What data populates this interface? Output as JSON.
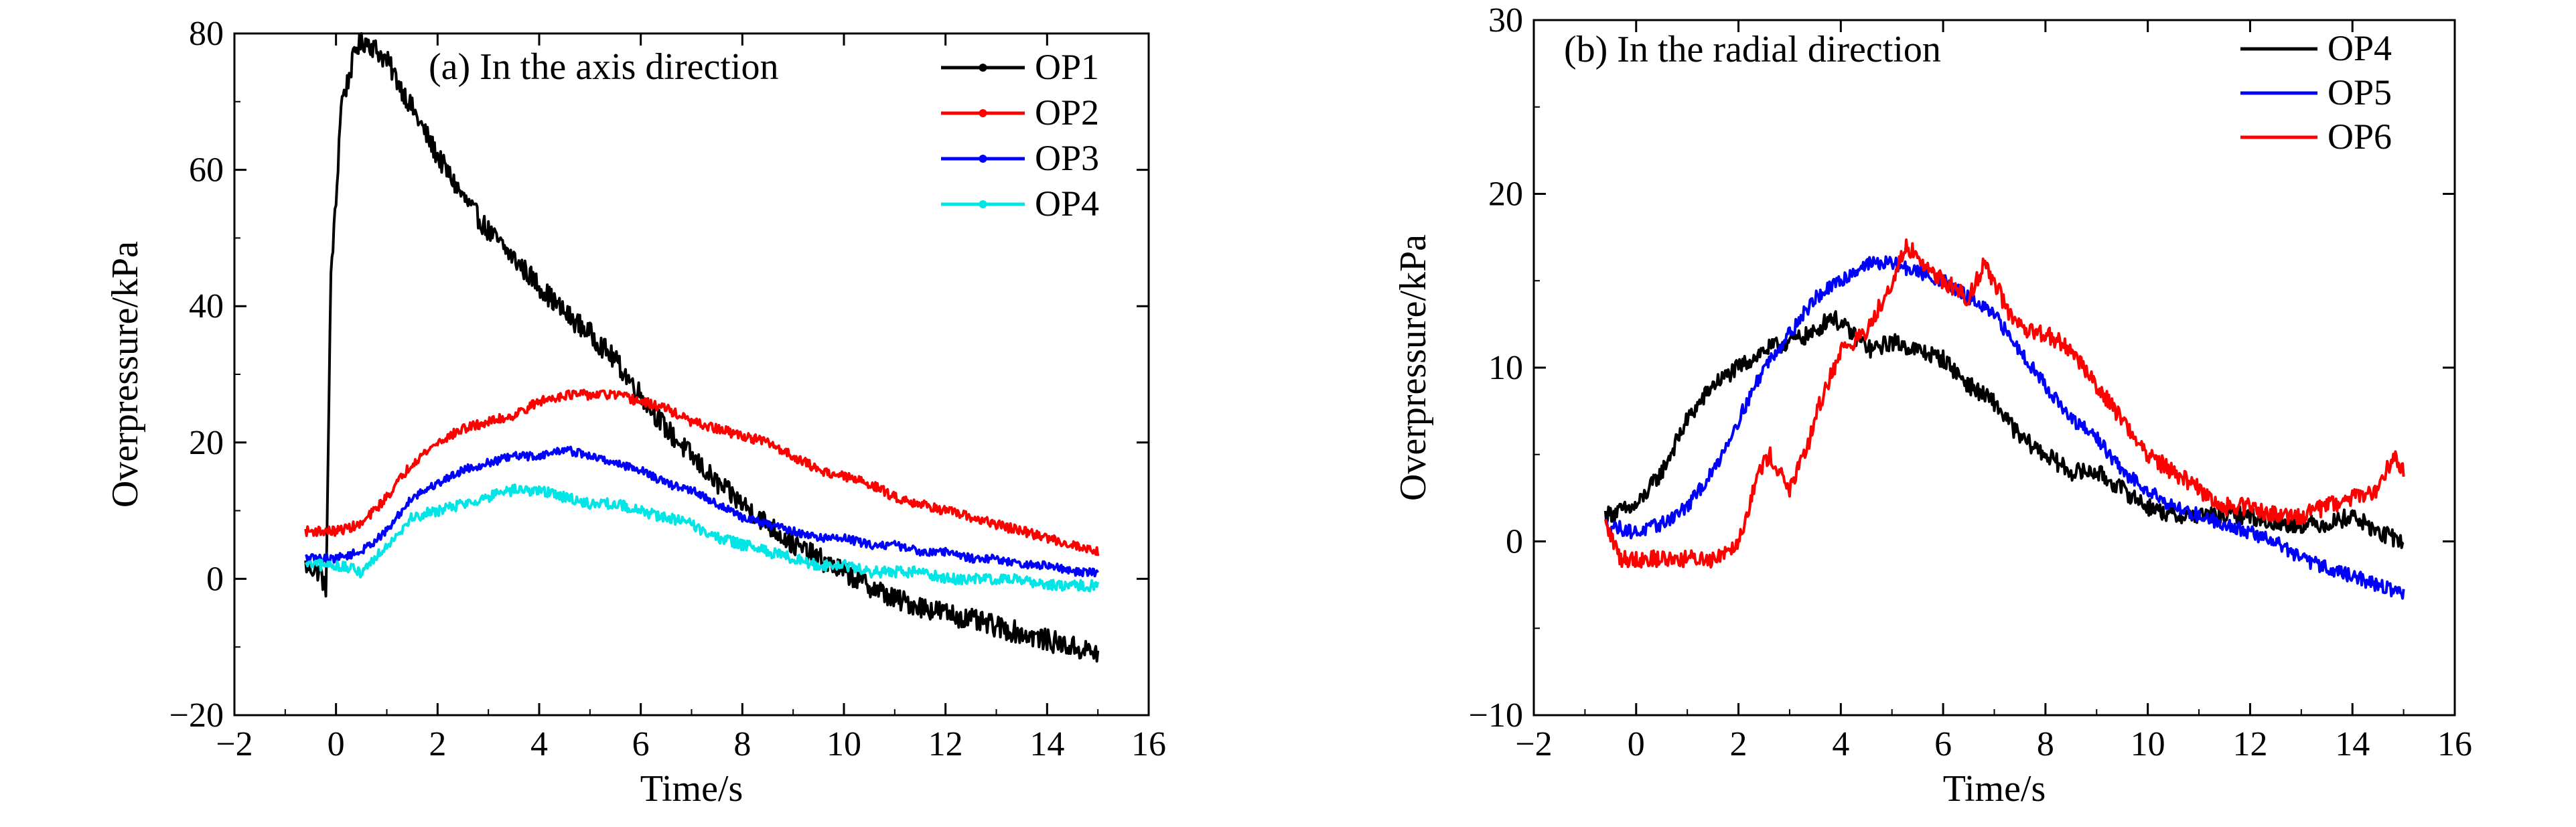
{
  "chart_data": [
    {
      "type": "line",
      "title": "(a) In the axis direction",
      "xlabel": "Time/s",
      "ylabel": "Overpressure/kPa",
      "xlim": [
        -2,
        16
      ],
      "ylim": [
        -20,
        80
      ],
      "xticks": [
        -2,
        0,
        2,
        4,
        6,
        8,
        10,
        12,
        14,
        16
      ],
      "yticks": [
        -20,
        0,
        20,
        40,
        60,
        80
      ],
      "xtick_labels": [
        "−2",
        "0",
        "2",
        "4",
        "6",
        "8",
        "10",
        "12",
        "14",
        "16"
      ],
      "ytick_labels": [
        "−20",
        "0",
        "20",
        "40",
        "60",
        "80"
      ],
      "grid": false,
      "legend_position": "top-right",
      "series": [
        {
          "name": "OP1",
          "color": "#000000",
          "noise": 1.6,
          "x": [
            -0.6,
            -0.3,
            -0.2,
            -0.15,
            -0.1,
            0.0,
            0.1,
            0.2,
            0.4,
            0.6,
            1.0,
            1.5,
            2.0,
            2.5,
            3.0,
            3.5,
            4.0,
            4.5,
            5.0,
            5.5,
            6.0,
            6.5,
            7.0,
            7.5,
            8.0,
            8.5,
            9.0,
            9.5,
            10.0,
            10.5,
            11.0,
            11.5,
            12.0,
            12.5,
            13.0,
            13.5,
            14.0,
            14.5,
            15.0
          ],
          "y": [
            2,
            1,
            -2,
            20,
            45,
            55,
            70,
            72,
            78,
            79,
            76,
            69,
            62,
            56,
            51,
            47,
            43,
            39,
            36,
            32,
            27,
            22,
            18,
            14,
            11,
            8,
            5,
            3,
            1,
            -1,
            -3,
            -4,
            -5,
            -6,
            -7,
            -8,
            -9,
            -10,
            -11
          ]
        },
        {
          "name": "OP2",
          "color": "#ff0000",
          "noise": 0.7,
          "x": [
            -0.6,
            0.0,
            0.5,
            1.0,
            1.5,
            2.0,
            2.5,
            3.0,
            3.5,
            4.0,
            4.5,
            5.0,
            5.5,
            6.0,
            6.5,
            7.0,
            7.5,
            8.0,
            8.5,
            9.0,
            9.5,
            10.0,
            10.5,
            11.0,
            11.5,
            12.0,
            12.5,
            13.0,
            13.5,
            14.0,
            14.5,
            15.0
          ],
          "y": [
            7,
            7,
            8,
            12,
            17,
            20,
            22,
            23,
            24,
            26,
            27,
            27,
            27,
            26,
            25,
            23,
            22,
            21,
            20,
            18,
            16,
            15,
            14,
            12,
            11,
            10,
            9,
            8,
            7,
            6,
            5,
            4
          ]
        },
        {
          "name": "OP3",
          "color": "#0000ff",
          "noise": 0.6,
          "x": [
            -0.6,
            0.0,
            0.5,
            1.0,
            1.5,
            2.0,
            2.5,
            3.0,
            3.5,
            4.0,
            4.5,
            5.0,
            5.5,
            6.0,
            6.5,
            7.0,
            7.5,
            8.0,
            8.5,
            9.0,
            9.5,
            10.0,
            10.5,
            11.0,
            11.5,
            12.0,
            12.5,
            13.0,
            13.5,
            14.0,
            14.5,
            15.0
          ],
          "y": [
            3,
            3,
            4,
            7,
            12,
            14,
            16,
            17,
            18,
            18,
            19,
            18,
            17,
            16,
            14,
            13,
            11,
            9,
            8,
            7,
            6,
            6,
            5,
            5,
            4,
            4,
            3,
            3,
            2,
            2,
            1,
            1
          ]
        },
        {
          "name": "OP4",
          "color": "#00e5e5",
          "noise": 0.8,
          "x": [
            -0.6,
            0.0,
            0.5,
            1.0,
            1.5,
            2.0,
            2.5,
            3.0,
            3.5,
            4.0,
            4.5,
            5.0,
            5.5,
            6.0,
            6.5,
            7.0,
            7.5,
            8.0,
            8.5,
            9.0,
            9.5,
            10.0,
            10.5,
            11.0,
            11.5,
            12.0,
            12.5,
            13.0,
            13.5,
            14.0,
            14.5,
            15.0
          ],
          "y": [
            2,
            2,
            1,
            5,
            9,
            10,
            11,
            12,
            13,
            13,
            12,
            11,
            11,
            10,
            9,
            8,
            6,
            5,
            4,
            3,
            2,
            2,
            1,
            1,
            1,
            0,
            0,
            0,
            0,
            -1,
            -1,
            -1
          ]
        }
      ]
    },
    {
      "type": "line",
      "title": "(b) In the radial direction",
      "xlabel": "Time/s",
      "ylabel": "Overpressure/kPa",
      "xlim": [
        -2,
        16
      ],
      "ylim": [
        -10,
        30
      ],
      "xticks": [
        -2,
        0,
        2,
        4,
        6,
        8,
        10,
        12,
        14,
        16
      ],
      "yticks": [
        -10,
        0,
        10,
        20,
        30
      ],
      "xtick_labels": [
        "−2",
        "0",
        "2",
        "4",
        "6",
        "8",
        "10",
        "12",
        "14",
        "16"
      ],
      "ytick_labels": [
        "−10",
        "0",
        "10",
        "20",
        "30"
      ],
      "grid": false,
      "legend_position": "top-right",
      "series": [
        {
          "name": "OP4",
          "color": "#000000",
          "noise": 0.5,
          "x": [
            -0.6,
            0.0,
            0.5,
            1.0,
            1.5,
            2.0,
            2.5,
            3.0,
            3.5,
            3.8,
            4.2,
            4.6,
            5.0,
            5.5,
            6.0,
            6.5,
            7.0,
            7.5,
            8.0,
            8.5,
            9.0,
            9.5,
            10.0,
            10.5,
            11.0,
            11.5,
            12.0,
            12.5,
            13.0,
            13.5,
            14.0,
            14.5,
            15.0
          ],
          "y": [
            1.5,
            2,
            4,
            7,
            9,
            10,
            11,
            11.5,
            12,
            13,
            12,
            11,
            11.5,
            11,
            10.5,
            9,
            8,
            6,
            5,
            4,
            4,
            3,
            2,
            1.5,
            1.5,
            1.5,
            1.5,
            1,
            1,
            1,
            1.5,
            0.5,
            0
          ]
        },
        {
          "name": "OP5",
          "color": "#0000ff",
          "noise": 0.4,
          "x": [
            -0.6,
            0.0,
            0.5,
            1.0,
            1.5,
            2.0,
            2.5,
            3.0,
            3.5,
            4.0,
            4.5,
            5.0,
            5.5,
            6.0,
            6.5,
            7.0,
            7.5,
            8.0,
            8.5,
            9.0,
            9.5,
            10.0,
            10.5,
            11.0,
            11.5,
            12.0,
            12.5,
            13.0,
            13.5,
            14.0,
            14.5,
            15.0
          ],
          "y": [
            1,
            0.5,
            1,
            2,
            4,
            7,
            10,
            12,
            14,
            15,
            16,
            16,
            15.5,
            15,
            14,
            13,
            11,
            9,
            7,
            6,
            4,
            3,
            2,
            1.5,
            1,
            0.5,
            0,
            -1,
            -1.5,
            -2,
            -2.5,
            -3
          ]
        },
        {
          "name": "OP6",
          "color": "#ff0000",
          "noise": 0.5,
          "x": [
            -0.6,
            -0.3,
            0.0,
            0.5,
            1.0,
            1.5,
            2.0,
            2.4,
            2.6,
            3.0,
            3.3,
            3.6,
            4.0,
            4.5,
            5.0,
            5.3,
            5.6,
            6.0,
            6.5,
            6.8,
            7.0,
            7.3,
            7.6,
            8.0,
            8.5,
            9.0,
            9.5,
            10.0,
            10.5,
            11.0,
            11.5,
            12.0,
            12.5,
            13.0,
            13.5,
            14.0,
            14.5,
            14.8,
            15.0
          ],
          "y": [
            1,
            -1,
            -1,
            -1,
            -1,
            -1,
            0,
            4,
            5,
            3,
            5,
            8,
            11,
            12,
            15,
            17,
            16,
            15,
            14,
            16,
            15,
            13,
            12,
            12,
            11,
            9,
            7,
            5,
            4,
            3,
            2,
            2,
            1.5,
            1.5,
            2,
            2.5,
            3,
            5,
            4
          ]
        }
      ]
    }
  ]
}
